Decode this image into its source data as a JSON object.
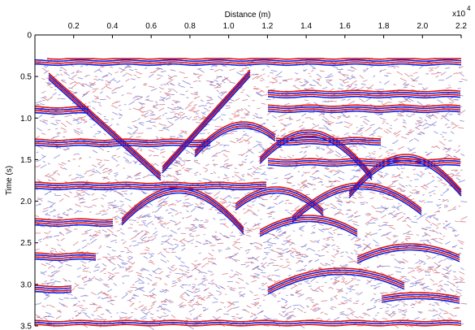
{
  "chart_data": {
    "type": "image",
    "xlabel": "Distance (m)",
    "x_multiplier": {
      "base": "x10",
      "exponent": "4"
    },
    "ylabel": "Time (s)",
    "xlim": [
      0,
      2.2
    ],
    "xticks": [
      0.2,
      0.4,
      0.6,
      0.8,
      {
        "value": 1.0,
        "label": "1.0"
      },
      1.2,
      1.4,
      1.6,
      1.8,
      {
        "value": 2.0,
        "label": "2.0"
      },
      2.2
    ],
    "ylim": [
      0,
      3.5
    ],
    "yticks": [
      0,
      0.5,
      {
        "value": 1.0,
        "label": "1.0"
      },
      1.5,
      {
        "value": 2.0,
        "label": "2.0"
      },
      2.5,
      {
        "value": 3.0,
        "label": "3.0"
      },
      3.5
    ],
    "y_reversed": true
  }
}
